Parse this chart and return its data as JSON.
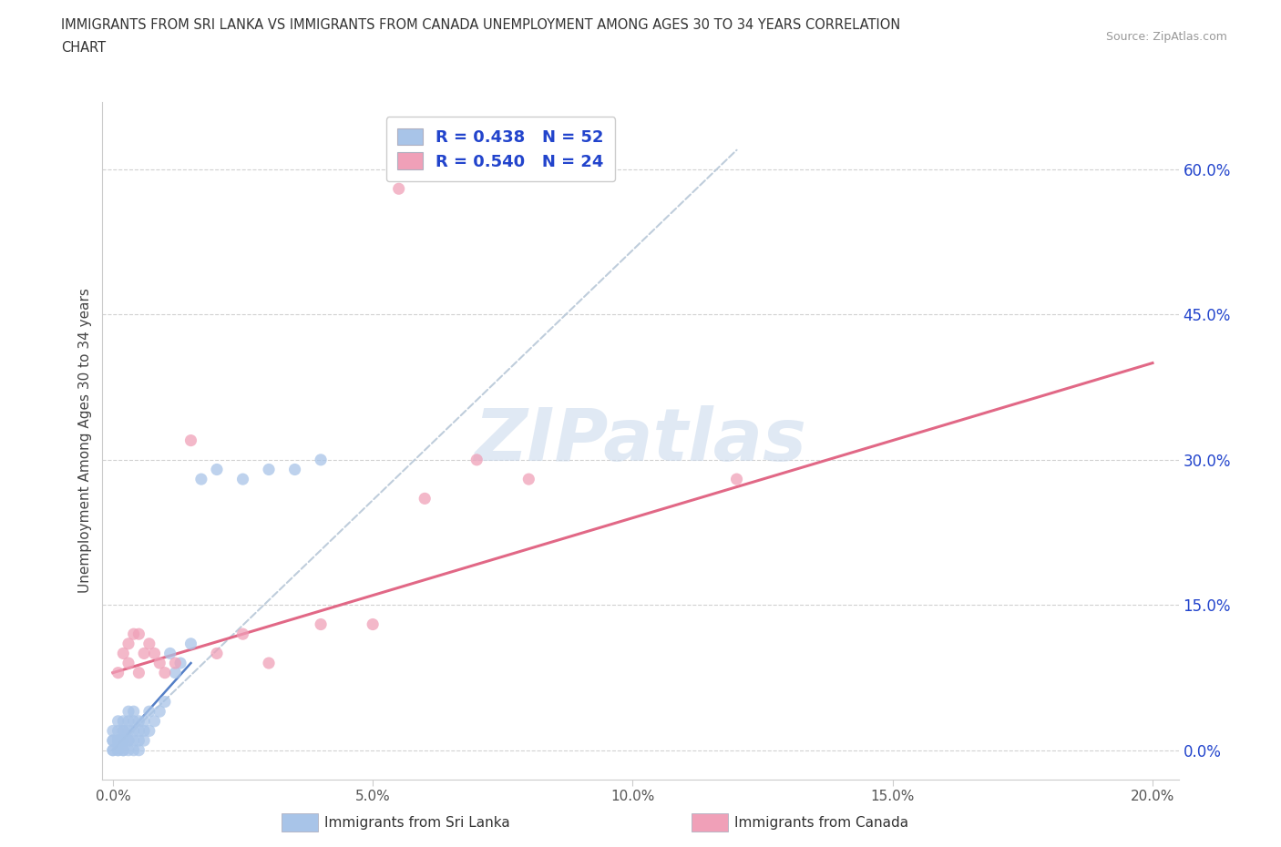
{
  "title_line1": "IMMIGRANTS FROM SRI LANKA VS IMMIGRANTS FROM CANADA UNEMPLOYMENT AMONG AGES 30 TO 34 YEARS CORRELATION",
  "title_line2": "CHART",
  "source": "Source: ZipAtlas.com",
  "ylabel": "Unemployment Among Ages 30 to 34 years",
  "xlim": [
    -0.002,
    0.205
  ],
  "ylim": [
    -0.03,
    0.67
  ],
  "yticks": [
    0.0,
    0.15,
    0.3,
    0.45,
    0.6
  ],
  "ytick_labels": [
    "0.0%",
    "15.0%",
    "30.0%",
    "45.0%",
    "60.0%"
  ],
  "xticks": [
    0.0,
    0.05,
    0.1,
    0.15,
    0.2
  ],
  "xtick_labels": [
    "0.0%",
    "5.0%",
    "10.0%",
    "15.0%",
    "20.0%"
  ],
  "series1_label": "Immigrants from Sri Lanka",
  "series1_color": "#a8c4e8",
  "series1_R": "0.438",
  "series1_N": "52",
  "series2_label": "Immigrants from Canada",
  "series2_color": "#f0a0b8",
  "series2_R": "0.540",
  "series2_N": "24",
  "trend1_color": "#b0c8e8",
  "trend2_color": "#e06080",
  "trend1_solid_color": "#4070c0",
  "legend_text_color": "#2244cc",
  "watermark_color": "#c8d8ec",
  "background_color": "#ffffff",
  "sri_lanka_x": [
    0.0,
    0.0,
    0.0,
    0.0,
    0.0,
    0.001,
    0.001,
    0.001,
    0.001,
    0.001,
    0.001,
    0.001,
    0.002,
    0.002,
    0.002,
    0.002,
    0.002,
    0.002,
    0.002,
    0.003,
    0.003,
    0.003,
    0.003,
    0.003,
    0.003,
    0.004,
    0.004,
    0.004,
    0.004,
    0.004,
    0.005,
    0.005,
    0.005,
    0.005,
    0.006,
    0.006,
    0.006,
    0.007,
    0.007,
    0.008,
    0.009,
    0.01,
    0.011,
    0.012,
    0.013,
    0.015,
    0.017,
    0.02,
    0.025,
    0.03,
    0.035,
    0.04
  ],
  "sri_lanka_y": [
    0.0,
    0.0,
    0.01,
    0.01,
    0.02,
    0.0,
    0.0,
    0.01,
    0.01,
    0.01,
    0.02,
    0.03,
    0.0,
    0.0,
    0.01,
    0.01,
    0.02,
    0.02,
    0.03,
    0.0,
    0.01,
    0.01,
    0.02,
    0.03,
    0.04,
    0.0,
    0.01,
    0.02,
    0.03,
    0.04,
    0.0,
    0.01,
    0.02,
    0.03,
    0.01,
    0.02,
    0.03,
    0.02,
    0.04,
    0.03,
    0.04,
    0.05,
    0.1,
    0.08,
    0.09,
    0.11,
    0.28,
    0.29,
    0.28,
    0.29,
    0.29,
    0.3
  ],
  "canada_x": [
    0.001,
    0.002,
    0.003,
    0.003,
    0.004,
    0.005,
    0.005,
    0.006,
    0.007,
    0.008,
    0.009,
    0.01,
    0.012,
    0.015,
    0.02,
    0.025,
    0.03,
    0.04,
    0.05,
    0.055,
    0.06,
    0.07,
    0.08,
    0.12
  ],
  "canada_y": [
    0.08,
    0.1,
    0.09,
    0.11,
    0.12,
    0.08,
    0.12,
    0.1,
    0.11,
    0.1,
    0.09,
    0.08,
    0.09,
    0.32,
    0.1,
    0.12,
    0.09,
    0.13,
    0.13,
    0.58,
    0.26,
    0.3,
    0.28,
    0.28
  ],
  "canada_trend_x0": 0.0,
  "canada_trend_y0": 0.08,
  "canada_trend_x1": 0.2,
  "canada_trend_y1": 0.4,
  "sri_trend_dashed_x0": 0.0,
  "sri_trend_dashed_y0": 0.0,
  "sri_trend_dashed_x1": 0.12,
  "sri_trend_dashed_y1": 0.62,
  "sri_trend_solid_x0": 0.0,
  "sri_trend_solid_y0": 0.0,
  "sri_trend_solid_x1": 0.015,
  "sri_trend_solid_y1": 0.09
}
